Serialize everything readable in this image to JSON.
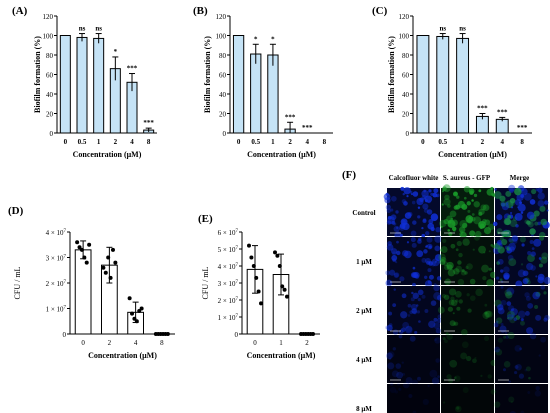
{
  "chart_data": [
    {
      "type": "bar",
      "panel": "(A)",
      "categories": [
        "0",
        "0.5",
        "1",
        "2",
        "4",
        "8"
      ],
      "values": [
        100,
        98,
        97,
        66,
        52,
        3
      ],
      "errors": [
        0,
        4,
        5,
        12,
        9,
        2
      ],
      "annotations": [
        "",
        "ns",
        "ns",
        "*",
        "***",
        "***"
      ],
      "xlabel": "Concentration  (μM)",
      "ylabel": "Biofilm formation  (%)",
      "yticks": [
        "0",
        "20",
        "40",
        "60",
        "80",
        "100",
        "120"
      ],
      "ylim": [
        0,
        120
      ]
    },
    {
      "type": "bar",
      "panel": "(B)",
      "categories": [
        "0",
        "0.5",
        "1",
        "2",
        "4",
        "8"
      ],
      "values": [
        100,
        81,
        80,
        4,
        0,
        0
      ],
      "errors": [
        0,
        10,
        11,
        7,
        0,
        0
      ],
      "annotations": [
        "",
        "*",
        "*",
        "***",
        "***",
        ""
      ],
      "xlabel": "Concentration  (μM)",
      "ylabel": "Biofilm formation  (%)",
      "yticks": [
        "0",
        "20",
        "40",
        "60",
        "80",
        "100",
        "120"
      ],
      "ylim": [
        0,
        120
      ]
    },
    {
      "type": "bar",
      "panel": "(C)",
      "categories": [
        "0",
        "0.5",
        "1",
        "2",
        "4",
        "8"
      ],
      "values": [
        100,
        99,
        97,
        17,
        14,
        0
      ],
      "errors": [
        0,
        3,
        5,
        3,
        2,
        0
      ],
      "annotations": [
        "",
        "ns",
        "ns",
        "***",
        "***",
        "***"
      ],
      "xlabel": "Concentration  (μM)",
      "ylabel": "Biofilm formation  (%)",
      "yticks": [
        "0",
        "20",
        "40",
        "60",
        "80",
        "100",
        "120"
      ],
      "ylim": [
        0,
        120
      ]
    },
    {
      "type": "bar",
      "panel": "(D)",
      "categories": [
        "0",
        "2",
        "4",
        "8"
      ],
      "values": [
        33000000,
        27000000,
        8500000,
        0
      ],
      "errors": [
        3500000,
        7000000,
        4000000,
        0
      ],
      "points": [
        [
          36000000,
          34000000,
          33000000,
          30000000,
          28000000,
          35000000
        ],
        [
          26000000,
          24000000,
          30000000,
          22000000,
          33000000,
          28000000
        ],
        [
          14000000,
          8000000,
          6000000,
          5000000,
          9000000,
          10000000
        ],
        [
          0,
          0,
          0,
          0,
          0,
          0
        ]
      ],
      "xlabel": "Concentration  (μM)",
      "ylabel": "CFU / mL",
      "yticks": [
        "0",
        "1 × 10^7",
        "2 × 10^7",
        "3 × 10^7",
        "4 × 10^7"
      ],
      "ylim": [
        0,
        40000000
      ]
    },
    {
      "type": "bar",
      "panel": "(E)",
      "categories": [
        "0",
        "1",
        "2"
      ],
      "values": [
        38000000,
        35000000,
        0
      ],
      "errors": [
        14000000,
        12000000,
        0
      ],
      "points": [
        [
          52000000,
          45000000,
          40000000,
          33000000,
          25000000,
          18000000
        ],
        [
          48000000,
          46000000,
          40000000,
          28000000,
          26000000,
          22000000
        ],
        [
          0,
          0,
          0,
          0,
          0,
          0
        ]
      ],
      "xlabel": "Concentration  (μM)",
      "ylabel": "CFU / mL",
      "yticks": [
        "0",
        "1 × 10^7",
        "2 × 10^7",
        "3 × 10^7",
        "4 × 10^7",
        "5 × 10^7",
        "6 × 10^7"
      ],
      "ylim": [
        0,
        60000000
      ]
    }
  ],
  "micrograph": {
    "panel": "(F)",
    "columns": [
      "Calcofluor white",
      "S. aureus - GFP",
      "Merge"
    ],
    "rows": [
      "Control",
      "1 μM",
      "2 μM",
      "4 μM",
      "8 μM"
    ],
    "channel_colors": {
      "blue": "#1030d8",
      "green": "#1a9a2a"
    },
    "intensity": [
      [
        0.95,
        0.95,
        0.95
      ],
      [
        0.75,
        0.55,
        0.75
      ],
      [
        0.6,
        0.4,
        0.6
      ],
      [
        0.3,
        0.25,
        0.3
      ],
      [
        0.15,
        0.2,
        0.2
      ]
    ]
  },
  "colors": {
    "bar_fill_abc": "#c5e3f6",
    "bar_fill_de": "#ffffff",
    "stroke": "#000000"
  }
}
